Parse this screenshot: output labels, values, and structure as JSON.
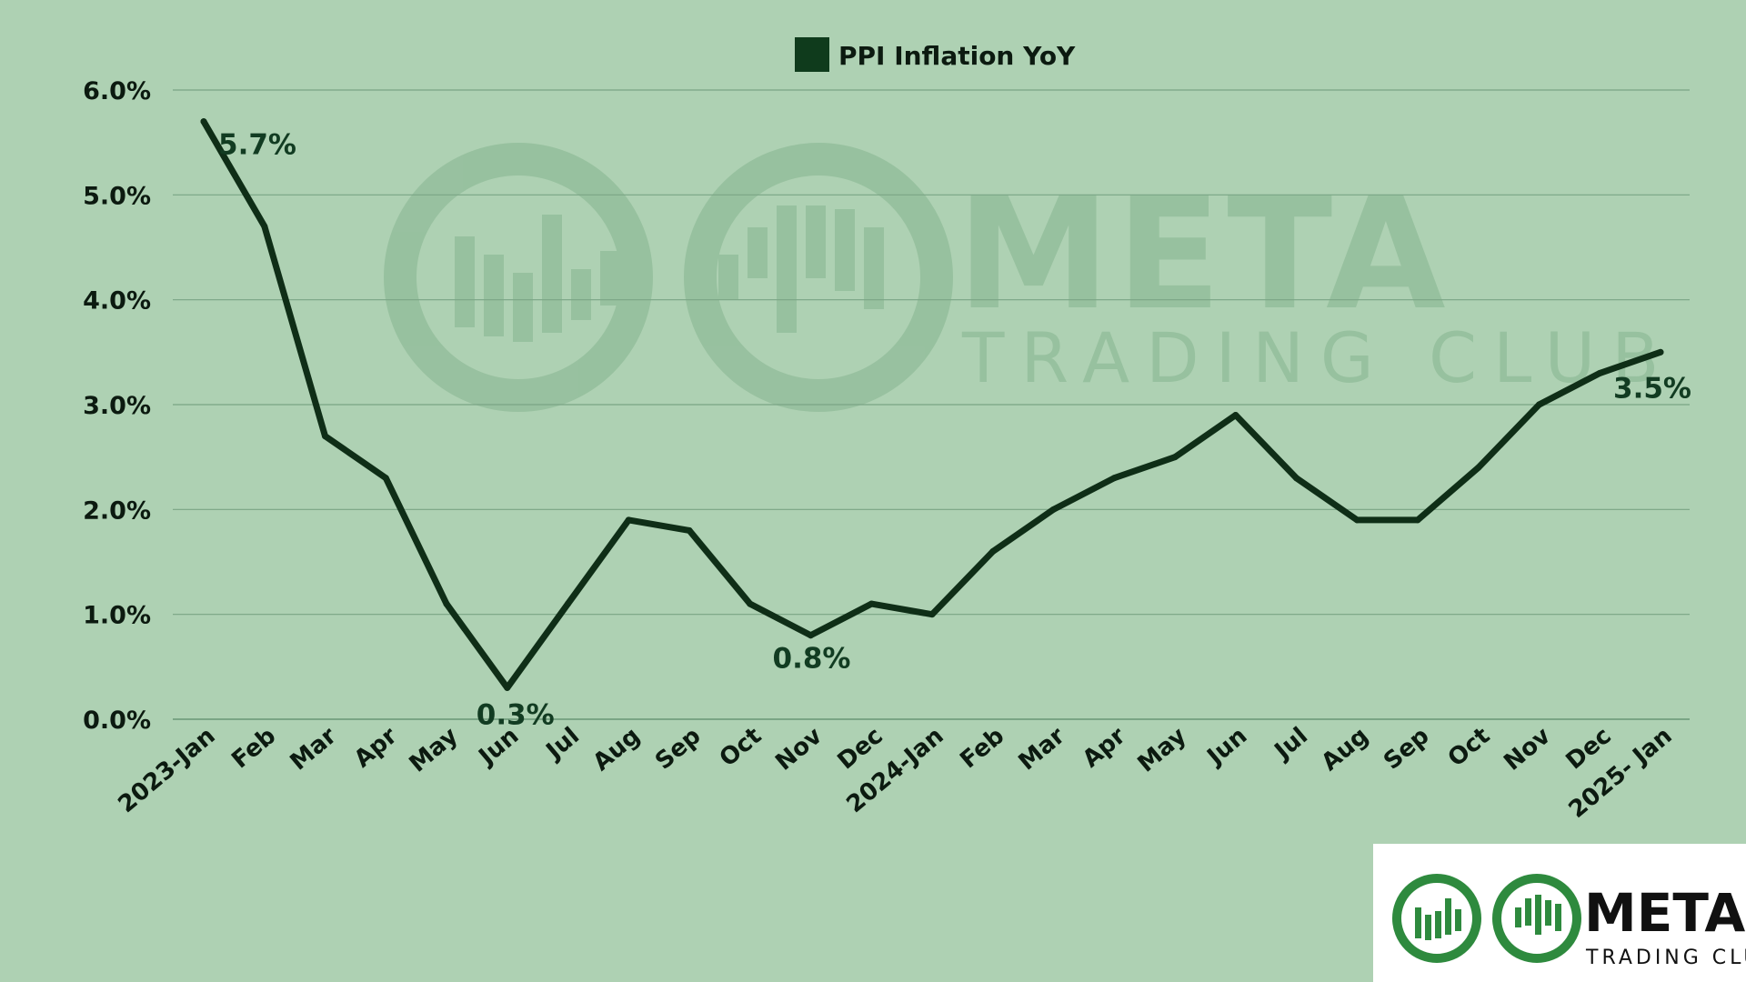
{
  "chart_data": {
    "type": "line",
    "legend": {
      "label": "PPI Inflation YoY",
      "placement": "top-center"
    },
    "categories": [
      "2023-Jan",
      "Feb",
      "Mar",
      "Apr",
      "May",
      "Jun",
      "Jul",
      "Aug",
      "Sep",
      "Oct",
      "Nov",
      "Dec",
      "2024-Jan",
      "Feb",
      "Mar",
      "Apr",
      "May",
      "Jun",
      "Jul",
      "Aug",
      "Sep",
      "Oct",
      "Nov",
      "Dec",
      "2025- Jan"
    ],
    "series": [
      {
        "name": "PPI Inflation YoY",
        "values": [
          5.7,
          4.7,
          2.7,
          2.3,
          1.1,
          0.3,
          1.1,
          1.9,
          1.8,
          1.1,
          0.8,
          1.1,
          1.0,
          1.6,
          2.0,
          2.3,
          2.5,
          2.9,
          2.3,
          1.9,
          1.9,
          2.4,
          3.0,
          3.3,
          3.5
        ]
      }
    ],
    "ylim": [
      0,
      6
    ],
    "yticks": [
      "0.0%",
      "1.0%",
      "2.0%",
      "3.0%",
      "4.0%",
      "5.0%",
      "6.0%"
    ],
    "grid": true,
    "annotations": [
      {
        "index": 0,
        "text": "5.7%"
      },
      {
        "index": 5,
        "text": "0.3%"
      },
      {
        "index": 10,
        "text": "0.8%"
      },
      {
        "index": 24,
        "text": "3.5%"
      }
    ],
    "title": "",
    "xlabel": "",
    "ylabel": ""
  },
  "watermark": {
    "title": "META",
    "subtitle": "TRADING CLUB"
  },
  "logo": {
    "title": "META",
    "subtitle": "TRADING CLUB"
  },
  "colors": {
    "background": "#aed1b3",
    "line": "#0f2e17",
    "grid": "#7aa585",
    "label": "#123c22",
    "watermark": "#8fbc97",
    "logo_green": "#2e8a3e"
  }
}
